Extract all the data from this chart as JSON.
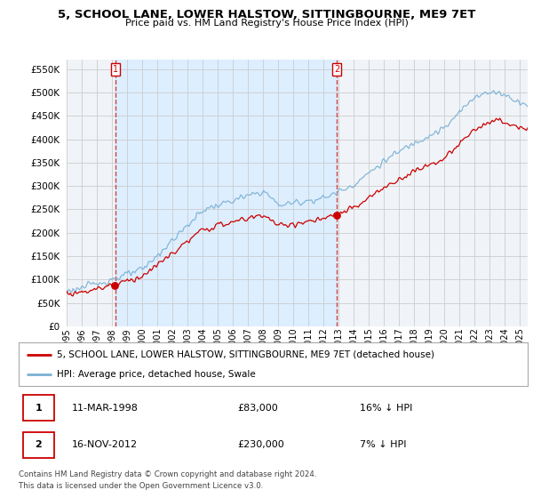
{
  "title": "5, SCHOOL LANE, LOWER HALSTOW, SITTINGBOURNE, ME9 7ET",
  "subtitle": "Price paid vs. HM Land Registry's House Price Index (HPI)",
  "sale1_year": 1998.208,
  "sale1_price": 83000,
  "sale1_label": "1",
  "sale2_year": 2012.875,
  "sale2_price": 230000,
  "sale2_label": "2",
  "legend_line1": "5, SCHOOL LANE, LOWER HALSTOW, SITTINGBOURNE, ME9 7ET (detached house)",
  "legend_line2": "HPI: Average price, detached house, Swale",
  "table_row1": [
    "1",
    "11-MAR-1998",
    "£83,000",
    "16% ↓ HPI"
  ],
  "table_row2": [
    "2",
    "16-NOV-2012",
    "£230,000",
    "7% ↓ HPI"
  ],
  "footer1": "Contains HM Land Registry data © Crown copyright and database right 2024.",
  "footer2": "This data is licensed under the Open Government Licence v3.0.",
  "price_color": "#cc0000",
  "hpi_color": "#7ab0d4",
  "shade_color": "#ddeeff",
  "vline_color": "#cc4444",
  "ylim_min": 0,
  "ylim_max": 570000,
  "yticks": [
    0,
    50000,
    100000,
    150000,
    200000,
    250000,
    300000,
    350000,
    400000,
    450000,
    500000,
    550000
  ],
  "xmin": 1995.0,
  "xmax": 2025.5,
  "background_color": "#ffffff",
  "chart_bg_color": "#f0f4f8",
  "grid_color": "#cccccc",
  "title_fontsize": 9.5,
  "subtitle_fontsize": 8,
  "tick_fontsize": 7.5,
  "legend_fontsize": 7.5,
  "table_fontsize": 8
}
